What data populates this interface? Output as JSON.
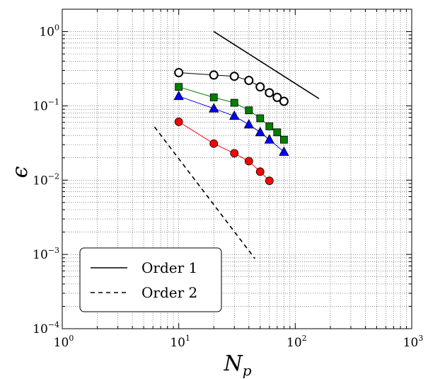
{
  "chart_data": {
    "type": "scatter",
    "title": "",
    "xlabel": "N",
    "xlabel_sub": "p",
    "ylabel": "ϵ",
    "xscale": "log",
    "yscale": "log",
    "xlim": [
      1,
      1000
    ],
    "ylim": [
      0.0001,
      2
    ],
    "grid": true,
    "legend_position": "lower-left",
    "x_ticks": [
      {
        "base": "10",
        "exp": "0",
        "value": 1
      },
      {
        "base": "10",
        "exp": "1",
        "value": 10
      },
      {
        "base": "10",
        "exp": "2",
        "value": 100
      },
      {
        "base": "10",
        "exp": "3",
        "value": 1000
      }
    ],
    "y_ticks": [
      {
        "base": "10",
        "exp": "−4",
        "value": 0.0001
      },
      {
        "base": "10",
        "exp": "−3",
        "value": 0.001
      },
      {
        "base": "10",
        "exp": "−2",
        "value": 0.01
      },
      {
        "base": "10",
        "exp": "−1",
        "value": 0.1
      },
      {
        "base": "10",
        "exp": "0",
        "value": 1
      }
    ],
    "series": [
      {
        "marker": "circle-open",
        "color": "#000000",
        "x": [
          10,
          20,
          30,
          40,
          50,
          60,
          70,
          80
        ],
        "y": [
          0.28,
          0.26,
          0.25,
          0.22,
          0.18,
          0.15,
          0.13,
          0.115
        ]
      },
      {
        "marker": "square",
        "color": "#007f00",
        "x": [
          10,
          20,
          30,
          40,
          50,
          60,
          70,
          80
        ],
        "y": [
          0.18,
          0.13,
          0.11,
          0.087,
          0.068,
          0.053,
          0.044,
          0.035
        ]
      },
      {
        "marker": "triangle",
        "color": "#0000ff",
        "x": [
          10,
          20,
          30,
          40,
          50,
          60,
          80
        ],
        "y": [
          0.135,
          0.092,
          0.073,
          0.056,
          0.044,
          0.035,
          0.024
        ]
      },
      {
        "marker": "circle",
        "color": "#ff0000",
        "x": [
          10,
          20,
          30,
          40,
          50,
          60
        ],
        "y": [
          0.061,
          0.031,
          0.023,
          0.018,
          0.013,
          0.0098
        ]
      }
    ],
    "reference_lines": [
      {
        "name": "Order 1",
        "style": "solid",
        "x": [
          20,
          160
        ],
        "y": [
          1.0,
          0.125
        ]
      },
      {
        "name": "Order 2",
        "style": "dashed",
        "x": [
          6.2,
          45
        ],
        "y": [
          0.052,
          0.00088
        ]
      }
    ]
  }
}
